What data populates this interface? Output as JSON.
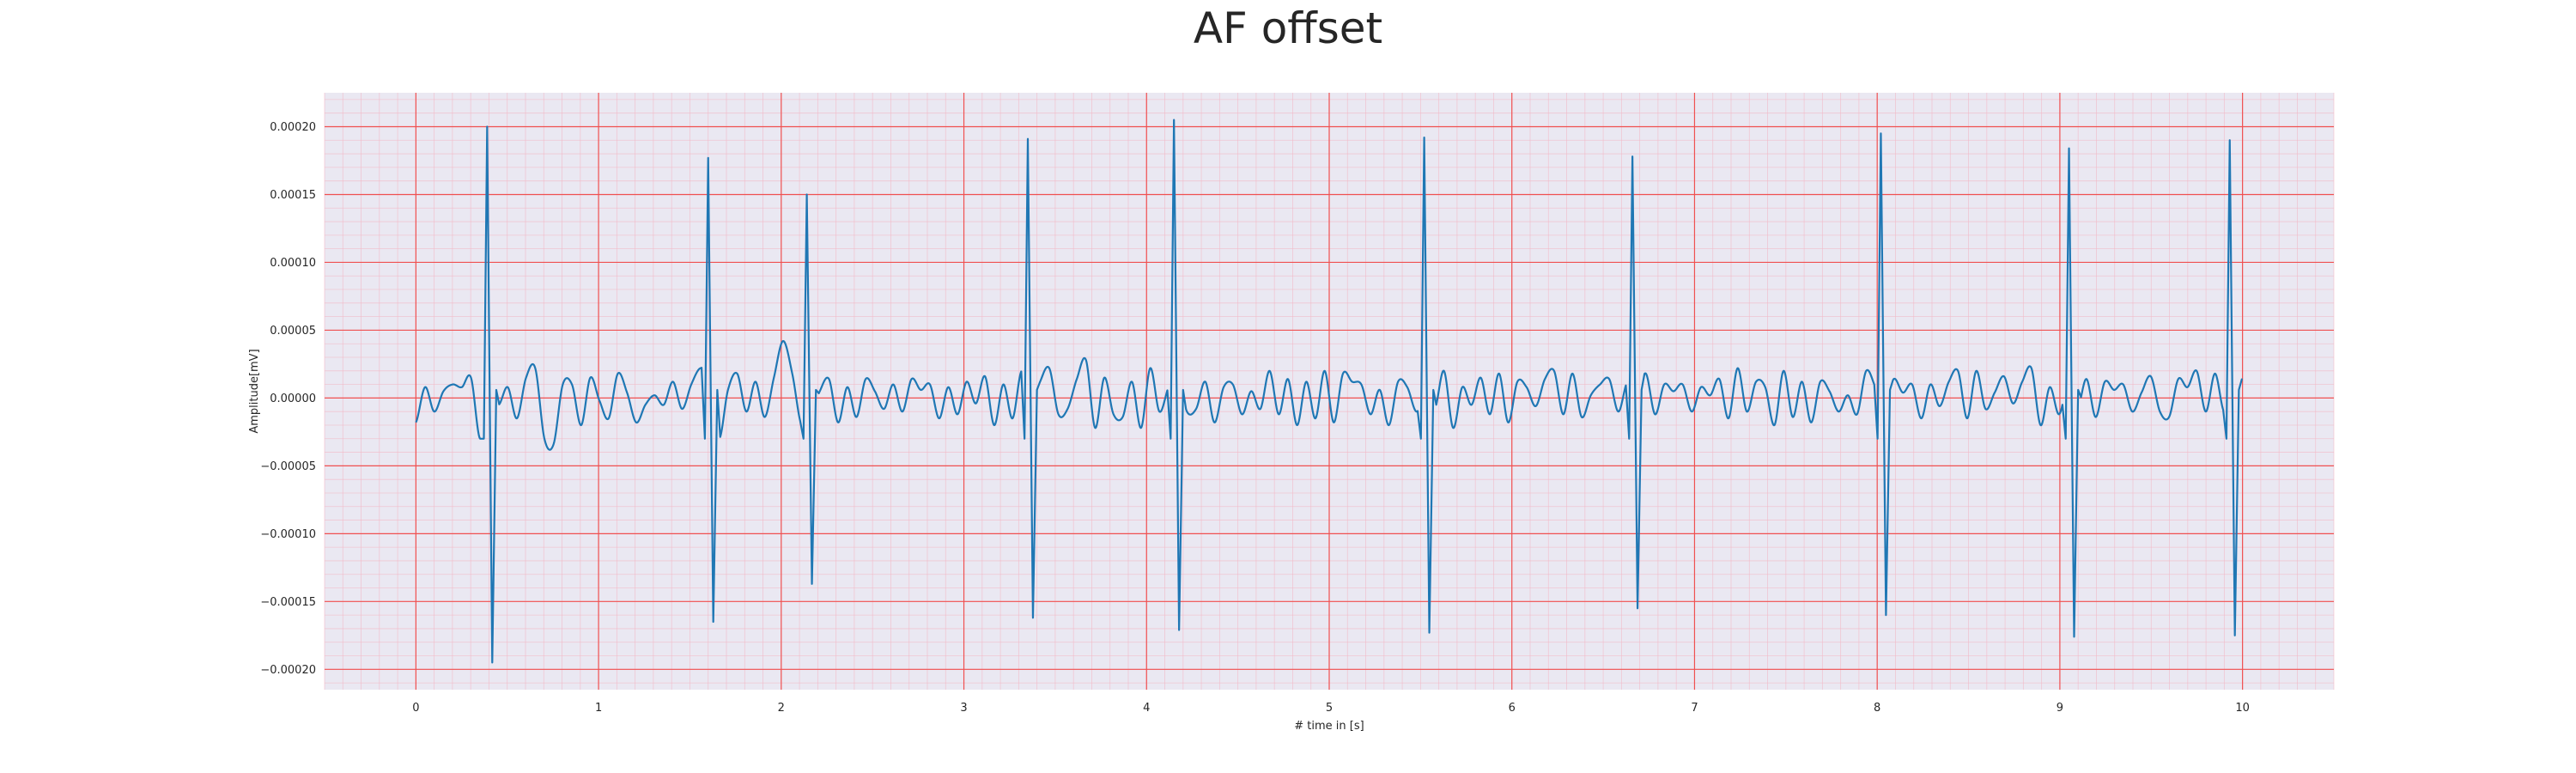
{
  "chart_data": {
    "type": "line",
    "title": "AF offset",
    "xlabel": "# time in [s]",
    "ylabel": "Amplitude[mV]",
    "xlim": [
      -0.5,
      10.5
    ],
    "ylim": [
      -0.000215,
      0.000225
    ],
    "xticks": [
      0,
      1,
      2,
      3,
      4,
      5,
      6,
      7,
      8,
      9,
      10
    ],
    "xtick_labels": [
      "0",
      "1",
      "2",
      "3",
      "4",
      "5",
      "6",
      "7",
      "8",
      "9",
      "10"
    ],
    "yticks": [
      -0.0002,
      -0.00015,
      -0.0001,
      -5e-05,
      0,
      5e-05,
      0.0001,
      0.00015,
      0.0002
    ],
    "ytick_labels": [
      "−0.00020",
      "−0.00015",
      "−0.00010",
      "−0.00005",
      "0.00000",
      "0.00005",
      "0.00010",
      "0.00015",
      "0.00020"
    ],
    "grid": true,
    "major_grid_color": "#f05050",
    "minor_grid_color": "#f3b8c6",
    "background_color": "#eae8f2",
    "line_color": "#1f77b4",
    "series": [
      {
        "beats": [
          {
            "t": 0.39,
            "peak": 0.0002,
            "trough": -0.000195
          },
          {
            "t": 1.6,
            "peak": 0.000177,
            "trough": -0.000165
          },
          {
            "t": 2.14,
            "peak": 0.00015,
            "trough": -0.000137
          },
          {
            "t": 3.35,
            "peak": 0.000191,
            "trough": -0.000162
          },
          {
            "t": 4.15,
            "peak": 0.000205,
            "trough": -0.000171
          },
          {
            "t": 5.52,
            "peak": 0.000192,
            "trough": -0.000173
          },
          {
            "t": 6.66,
            "peak": 0.000178,
            "trough": -0.000155
          },
          {
            "t": 8.02,
            "peak": 0.000195,
            "trough": -0.00016
          },
          {
            "t": 9.05,
            "peak": 0.000184,
            "trough": -0.000176
          },
          {
            "t": 9.93,
            "peak": 0.00019,
            "trough": -0.000175
          }
        ],
        "baseline": {
          "t_start": 0.0,
          "t_end": 10.0,
          "values": [
            -1.8e-05,
            8e-06,
            -1e-05,
            5e-06,
            1e-05,
            8e-06,
            1.5e-05,
            -3e-05,
            5e-06,
            -5e-06,
            8e-06,
            -1.5e-05,
            1.5e-05,
            2.2e-05,
            -3e-05,
            -3.4e-05,
            1e-05,
            1e-05,
            -2e-05,
            1.5e-05,
            -2e-06,
            -1.5e-05,
            1.8e-05,
            4e-06,
            -1.8e-05,
            -5e-06,
            2e-06,
            -5e-06,
            1.2e-05,
            -8e-06,
            1e-05,
            2.2e-05,
            1.5e-05,
            -3e-05,
            6e-06,
            1.8e-05,
            -1e-05,
            1.2e-05,
            -1.4e-05,
            1.5e-05,
            4.2e-05,
            1.8e-05,
            -2e-05,
            -1.4e-05,
            5e-06,
            1.4e-05,
            -1.8e-05,
            8e-06,
            -1.4e-05,
            1.4e-05,
            5e-06,
            -8e-06,
            1e-05,
            -1e-05,
            1.4e-05,
            6e-06,
            1e-05,
            -1.5e-05,
            8e-06,
            -1.2e-05,
            1.2e-05,
            -4e-06,
            1.6e-05,
            -2e-05,
            1e-05,
            -1.5e-05,
            2e-05,
            -8e-06,
            1.2e-05,
            2.2e-05,
            -1.2e-05,
            -8e-06,
            1.4e-05,
            2.8e-05,
            -2.2e-05,
            1.5e-05,
            -1.2e-05,
            -1.4e-05,
            1.2e-05,
            -2.2e-05,
            2.2e-05,
            -1e-05,
            8e-06,
            1.8e-05,
            -1e-05,
            -8e-06,
            1.2e-05,
            -1.8e-05,
            8e-06,
            1e-05,
            -1.2e-05,
            5e-06,
            -8e-06,
            2e-05,
            -1.2e-05,
            1.4e-05,
            -2e-05,
            1.2e-05,
            -1.5e-05,
            2e-05,
            -1.8e-05,
            1.8e-05,
            1.2e-05,
            1e-05,
            -1.2e-05,
            6e-06,
            -2e-05,
            1.2e-05,
            8e-06,
            -1e-05,
            4e-06,
            -8e-06,
            2e-05,
            -2.2e-05,
            8e-06,
            -5e-06,
            1.5e-05,
            -1.2e-05,
            1.8e-05,
            -1.8e-05,
            1.2e-05,
            8e-06,
            -6e-06,
            1.4e-05,
            2e-05,
            -1.2e-05,
            1.8e-05,
            -1.4e-05,
            2e-06,
            1e-05,
            1.4e-05,
            -1e-05,
            1.2e-05,
            2e-06,
            1.8e-05,
            -1.2e-05,
            1e-05,
            5e-06,
            1e-05,
            -1e-05,
            8e-06,
            2e-06,
            1.4e-05,
            -1.5e-05,
            2.2e-05,
            -1e-05,
            1.2e-05,
            8e-06,
            -2e-05,
            2e-05,
            -1.4e-05,
            1.2e-05,
            -1.8e-05,
            1.2e-05,
            5e-06,
            -1e-05,
            2e-06,
            -1.2e-05,
            2e-05,
            8e-06,
            -8e-06,
            1.4e-05,
            4e-06,
            1e-05,
            -1.5e-05,
            1e-05,
            -6e-06,
            1.2e-05,
            2e-05,
            -1.5e-05,
            2e-05,
            -8e-06,
            4e-06,
            1.6e-05,
            -4e-06,
            1.2e-05,
            2.2e-05,
            -2e-05,
            8e-06,
            -1.2e-05,
            1e-05,
            -8e-06,
            1.4e-05,
            -1.4e-05,
            1.2e-05,
            6e-06,
            1e-05,
            -1e-05,
            4e-06,
            1.6e-05,
            -1e-05,
            -1.4e-05,
            1.4e-05,
            8e-06,
            2e-05,
            -1e-05,
            1.8e-05,
            -1e-05,
            8e-06,
            1.4e-05
          ]
        }
      }
    ]
  }
}
